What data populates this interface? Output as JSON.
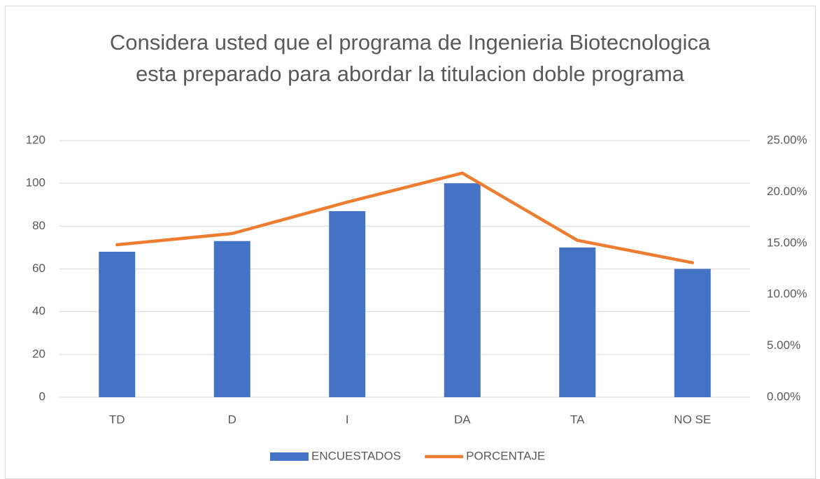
{
  "chart_data": {
    "type": "bar-line",
    "title": "Considera usted que el programa de Ingenieria Biotecnologica esta preparado para abordar la titulacion doble programa",
    "categories": [
      "TD",
      "D",
      "I",
      "DA",
      "TA",
      "NO SE"
    ],
    "series": [
      {
        "name": "ENCUESTADOS",
        "type": "bar",
        "color": "#4472c4",
        "values": [
          68,
          73,
          87,
          100,
          70,
          60
        ]
      },
      {
        "name": "PORCENTAJE",
        "type": "line",
        "color": "#ed7d31",
        "axis": "y2",
        "values": [
          14.85,
          15.94,
          19.0,
          21.83,
          15.28,
          13.1
        ]
      }
    ],
    "ylim": [
      0,
      120
    ],
    "yticks": [
      0,
      20,
      40,
      60,
      80,
      100,
      120
    ],
    "y2lim": [
      0,
      25
    ],
    "y2ticks": [
      {
        "value": 0,
        "label": "0.00%"
      },
      {
        "value": 5,
        "label": "5.00%"
      },
      {
        "value": 10,
        "label": "10.00%"
      },
      {
        "value": 15,
        "label": "15.00%"
      },
      {
        "value": 20,
        "label": "20.00%"
      },
      {
        "value": 25,
        "label": "25.00%"
      }
    ],
    "grid": true,
    "legend": "bottom"
  }
}
